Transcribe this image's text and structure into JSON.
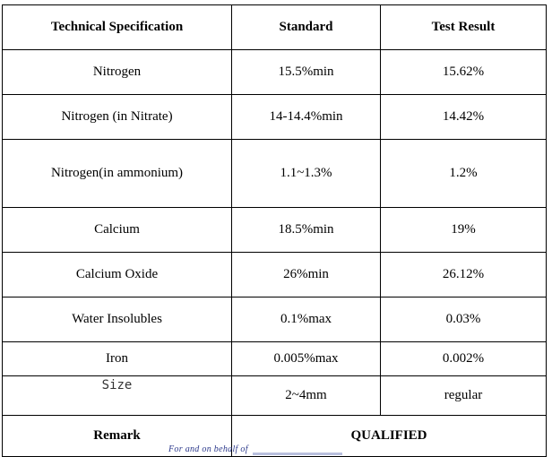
{
  "table": {
    "headers": [
      "Technical Specification",
      "Standard",
      "Test Result"
    ],
    "rows": [
      {
        "spec": "Nitrogen",
        "standard": "15.5%min",
        "result": "15.62%"
      },
      {
        "spec": "Nitrogen (in Nitrate)",
        "standard": "14-14.4%min",
        "result": "14.42%"
      },
      {
        "spec": "Nitrogen(in ammonium)",
        "standard": "1.1~1.3%",
        "result": "1.2%"
      },
      {
        "spec": "Calcium",
        "standard": "18.5%min",
        "result": "19%"
      },
      {
        "spec": "Calcium Oxide",
        "standard": "26%min",
        "result": "26.12%"
      },
      {
        "spec": "Water Insolubles",
        "standard": "0.1%max",
        "result": "0.03%"
      },
      {
        "spec": "Iron",
        "standard": "0.005%max",
        "result": "0.002%"
      },
      {
        "spec": "Size",
        "standard": "2~4mm",
        "result": "regular"
      }
    ],
    "remark_label": "Remark",
    "remark_value": "QUALIFIED"
  },
  "signature_text": "For and on behalf of"
}
